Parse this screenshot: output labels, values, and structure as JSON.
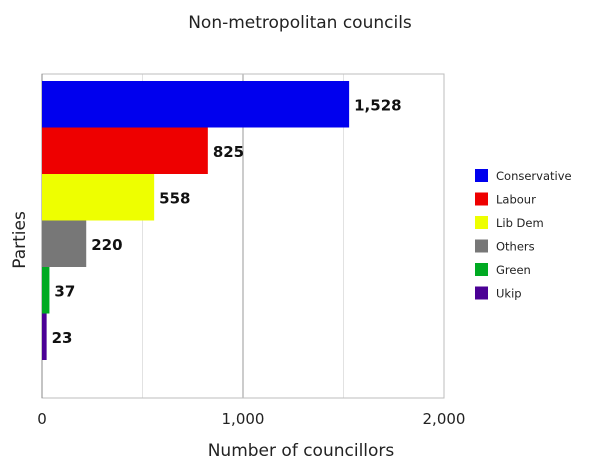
{
  "chart_data": {
    "type": "bar",
    "orientation": "horizontal",
    "title": "Non-metropolitan councils",
    "xlabel": "Number of councillors",
    "ylabel": "Parties",
    "xlim": [
      0,
      2000
    ],
    "xticks": [
      0,
      1000,
      2000
    ],
    "xtick_labels": [
      "0",
      "1,000",
      "2,000"
    ],
    "grid": "vertical",
    "legend_position": "right",
    "categories": [
      "Conservative",
      "Labour",
      "Lib Dem",
      "Others",
      "Green",
      "Ukip"
    ],
    "values": [
      1528,
      825,
      558,
      220,
      37,
      23
    ],
    "value_labels": [
      "1,528",
      "825",
      "558",
      "220",
      "37",
      "23"
    ],
    "colors": [
      "#0000ee",
      "#ee0000",
      "#eeff00",
      "#777777",
      "#00aa22",
      "#4b0095"
    ]
  }
}
